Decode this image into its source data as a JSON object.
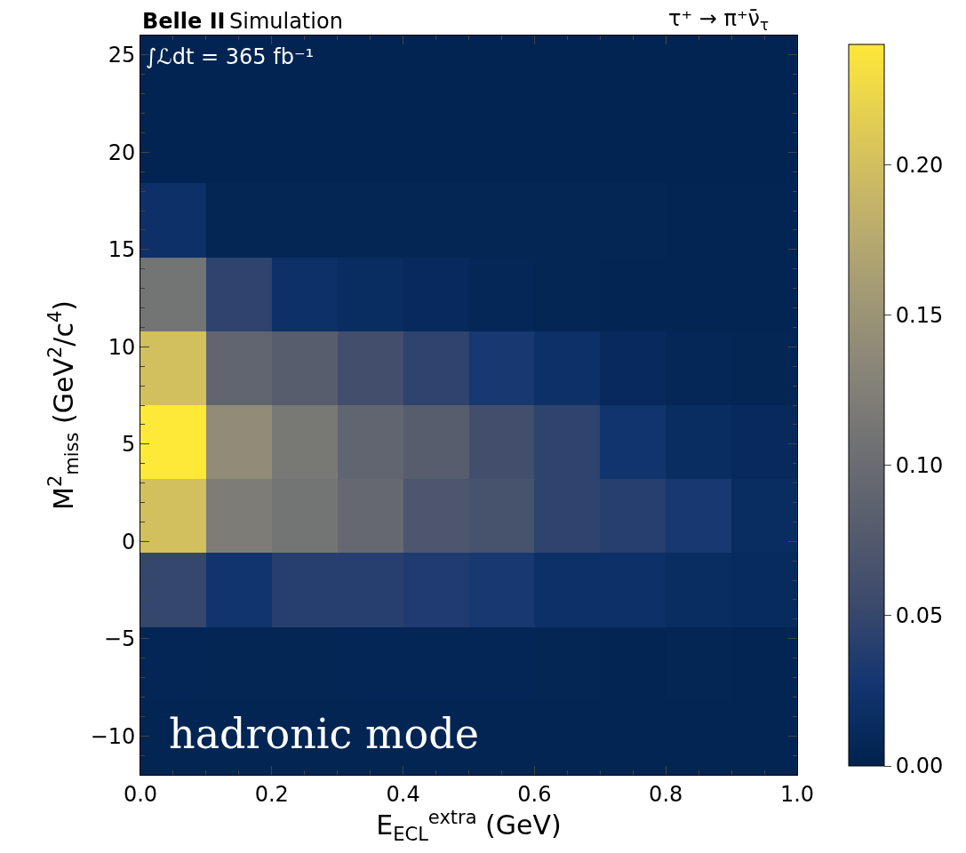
{
  "chart_data": {
    "type": "heatmap",
    "title": "Belle II",
    "subtitle": "Simulation",
    "xlabel": "E$_{ECL}$$^{extra}$ (GeV)",
    "ylabel": "M$^{2}$$_{miss}$ (GeV$^{2}$/c$^{4}$)",
    "annotations": [
      "τ⁺ → π⁺ν̄$_{τ}$",
      "∫ℒdt = 365 fb⁻¹",
      "hadronic mode"
    ],
    "x": [
      0.05,
      0.15,
      0.25,
      0.35,
      0.45,
      0.55,
      0.65,
      0.75,
      0.85,
      0.95
    ],
    "y": [
      24.1,
      20.3,
      16.5,
      12.7,
      8.9,
      5.1,
      1.3,
      -2.5,
      -6.3,
      -10.1
    ],
    "cells": [
      [
        0.003,
        0.003,
        0.003,
        0.003,
        0.003,
        0.003,
        0.003,
        0.003,
        0.003,
        0.003
      ],
      [
        0.003,
        0.003,
        0.003,
        0.003,
        0.003,
        0.003,
        0.003,
        0.003,
        0.003,
        0.003
      ],
      [
        0.02,
        0.005,
        0.005,
        0.005,
        0.005,
        0.005,
        0.005,
        0.005,
        0.004,
        0.004
      ],
      [
        0.11,
        0.045,
        0.02,
        0.015,
        0.01,
        0.007,
        0.005,
        0.004,
        0.004,
        0.004
      ],
      [
        0.2,
        0.09,
        0.08,
        0.06,
        0.045,
        0.03,
        0.02,
        0.01,
        0.007,
        0.005
      ],
      [
        0.24,
        0.14,
        0.115,
        0.09,
        0.08,
        0.06,
        0.045,
        0.025,
        0.015,
        0.01
      ],
      [
        0.2,
        0.12,
        0.11,
        0.095,
        0.07,
        0.065,
        0.045,
        0.04,
        0.03,
        0.015
      ],
      [
        0.05,
        0.025,
        0.04,
        0.04,
        0.035,
        0.03,
        0.02,
        0.02,
        0.015,
        0.012
      ],
      [
        0.006,
        0.005,
        0.005,
        0.006,
        0.006,
        0.006,
        0.005,
        0.004,
        0.005,
        0.004
      ],
      [
        0.004,
        0.004,
        0.004,
        0.004,
        0.004,
        0.004,
        0.004,
        0.004,
        0.004,
        0.004
      ]
    ],
    "xlim": [
      0,
      1
    ],
    "ylim": [
      -12,
      26
    ],
    "xticks": [
      {
        "value": 0,
        "label": "0.0"
      },
      {
        "value": 0.2,
        "label": "0.2"
      },
      {
        "value": 0.4,
        "label": "0.4"
      },
      {
        "value": 0.6,
        "label": "0.6"
      },
      {
        "value": 0.8,
        "label": "0.8"
      },
      {
        "value": 1,
        "label": "1.0"
      }
    ],
    "yticks": [
      {
        "value": -10,
        "label": "−10"
      },
      {
        "value": -5,
        "label": "−5"
      },
      0,
      5,
      10,
      15,
      20,
      25
    ],
    "clim": [
      0,
      0.24
    ],
    "cticks": [
      {
        "value": 0,
        "label": "0.00"
      },
      {
        "value": 0.05,
        "label": "0.05"
      },
      {
        "value": 0.1,
        "label": "0.10"
      },
      {
        "value": 0.15,
        "label": "0.15"
      },
      {
        "value": 0.2,
        "label": "0.20"
      }
    ]
  }
}
